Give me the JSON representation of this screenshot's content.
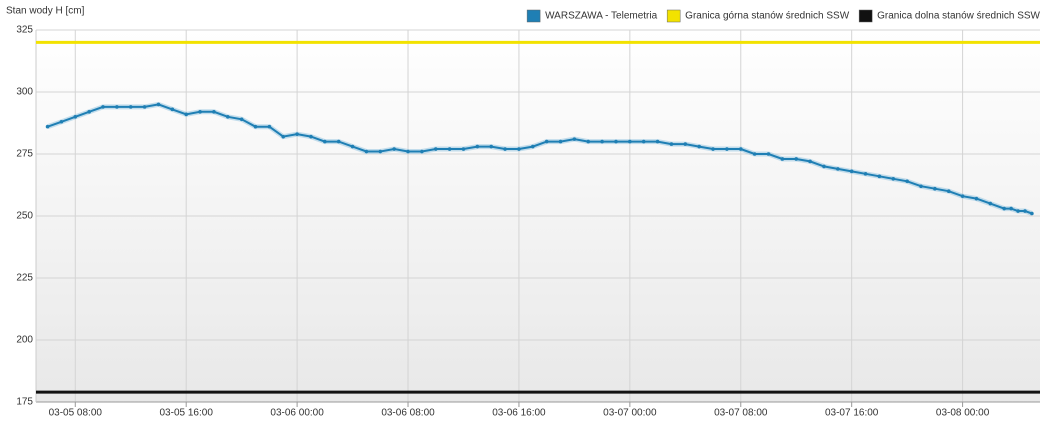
{
  "chart_data": {
    "type": "line",
    "y_label": "Stan wody H [cm]",
    "ylim": [
      175,
      325
    ],
    "yticks": [
      175,
      200,
      225,
      250,
      275,
      300,
      325
    ],
    "xlim": [
      "03-05 05:10",
      "03-08 05:35"
    ],
    "xticks": [
      "03-05 08:00",
      "03-05 16:00",
      "03-06 00:00",
      "03-06 08:00",
      "03-06 16:00",
      "03-07 00:00",
      "03-07 08:00",
      "03-07 16:00",
      "03-08 00:00"
    ],
    "grid": true,
    "legend": "top-right",
    "x": [
      "03-05 06:00",
      "03-05 07:00",
      "03-05 08:00",
      "03-05 09:00",
      "03-05 10:00",
      "03-05 11:00",
      "03-05 12:00",
      "03-05 13:00",
      "03-05 14:00",
      "03-05 15:00",
      "03-05 16:00",
      "03-05 17:00",
      "03-05 18:00",
      "03-05 19:00",
      "03-05 20:00",
      "03-05 21:00",
      "03-05 22:00",
      "03-05 23:00",
      "03-06 00:00",
      "03-06 01:00",
      "03-06 02:00",
      "03-06 03:00",
      "03-06 04:00",
      "03-06 05:00",
      "03-06 06:00",
      "03-06 07:00",
      "03-06 08:00",
      "03-06 09:00",
      "03-06 10:00",
      "03-06 11:00",
      "03-06 12:00",
      "03-06 13:00",
      "03-06 14:00",
      "03-06 15:00",
      "03-06 16:00",
      "03-06 17:00",
      "03-06 18:00",
      "03-06 19:00",
      "03-06 20:00",
      "03-06 21:00",
      "03-06 22:00",
      "03-06 23:00",
      "03-07 00:00",
      "03-07 01:00",
      "03-07 02:00",
      "03-07 03:00",
      "03-07 04:00",
      "03-07 05:00",
      "03-07 06:00",
      "03-07 07:00",
      "03-07 08:00",
      "03-07 09:00",
      "03-07 10:00",
      "03-07 11:00",
      "03-07 12:00",
      "03-07 13:00",
      "03-07 14:00",
      "03-07 15:00",
      "03-07 16:00",
      "03-07 17:00",
      "03-07 18:00",
      "03-07 19:00",
      "03-07 20:00",
      "03-07 21:00",
      "03-07 22:00",
      "03-07 23:00",
      "03-08 00:00",
      "03-08 01:00",
      "03-08 02:00",
      "03-08 03:00",
      "03-08 03:30",
      "03-08 04:00",
      "03-08 04:30",
      "03-08 05:00"
    ],
    "series": [
      {
        "name": "WARSZAWA - Telemetria",
        "color": "#1f7fb4",
        "values": [
          286,
          288,
          290,
          292,
          294,
          294,
          294,
          294,
          295,
          293,
          291,
          292,
          292,
          290,
          289,
          286,
          286,
          282,
          283,
          282,
          280,
          280,
          278,
          276,
          276,
          277,
          276,
          276,
          277,
          277,
          277,
          278,
          278,
          277,
          277,
          278,
          280,
          280,
          281,
          280,
          280,
          280,
          280,
          280,
          280,
          279,
          279,
          278,
          277,
          277,
          277,
          275,
          275,
          273,
          273,
          272,
          270,
          269,
          268,
          267,
          266,
          265,
          264,
          262,
          261,
          260,
          258,
          257,
          255,
          253,
          253,
          252,
          252,
          251
        ]
      },
      {
        "name": "Granica górna stanów średnich SSW",
        "color": "#f2e200",
        "value": 320
      },
      {
        "name": "Granica dolna stanów średnich SSW",
        "color": "#111111",
        "value": 179
      }
    ]
  }
}
